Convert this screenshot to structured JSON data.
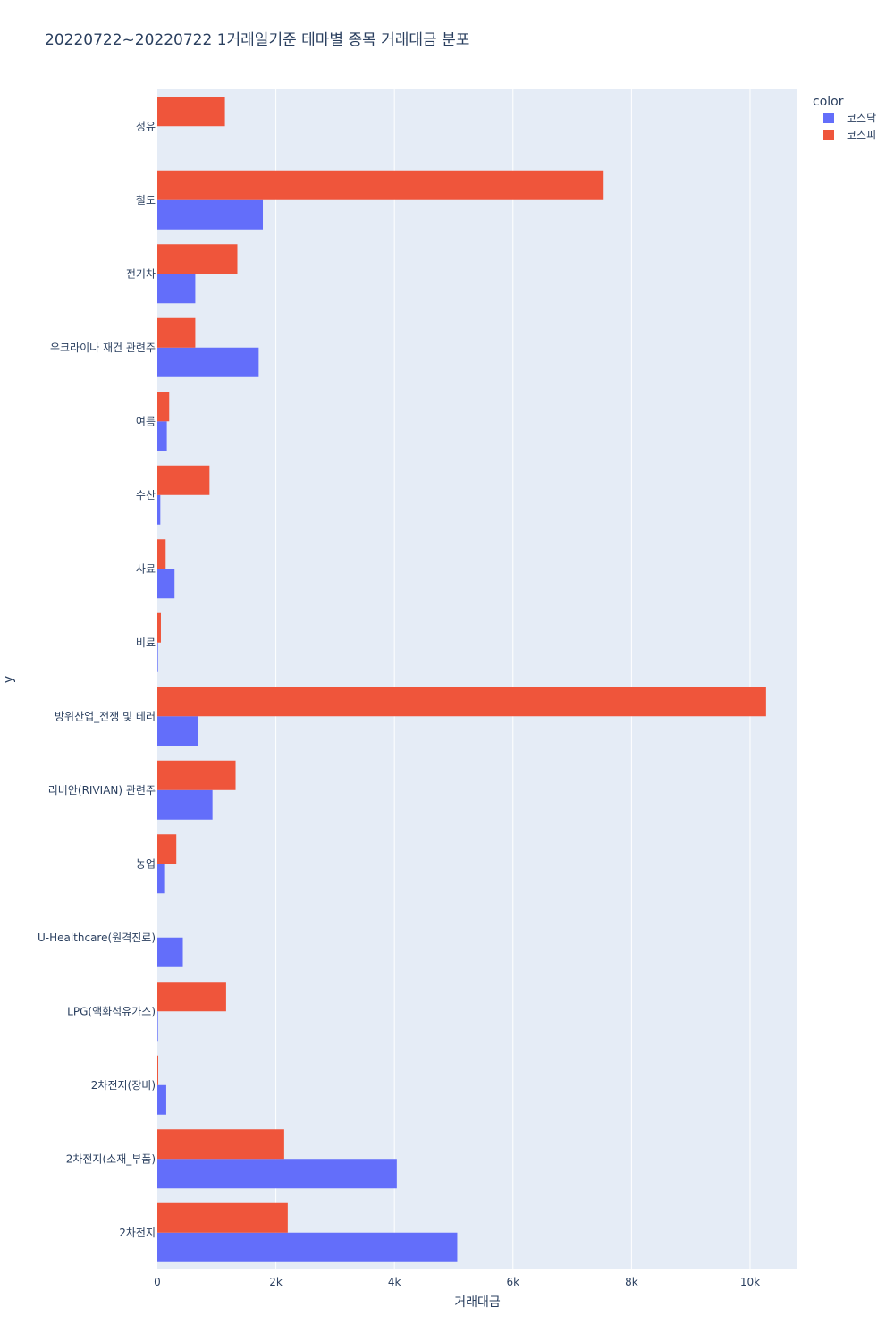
{
  "chart_data": {
    "type": "bar",
    "orientation": "horizontal",
    "barmode": "group",
    "title": "20220722~20220722 1거래일기준 테마별 종목 거래대금 분포",
    "xlabel": "거래대금",
    "ylabel": "y",
    "xlim": [
      0,
      10800
    ],
    "x_ticks": [
      0,
      2000,
      4000,
      6000,
      8000,
      10000
    ],
    "x_tick_labels": [
      "0",
      "2k",
      "4k",
      "6k",
      "8k",
      "10k"
    ],
    "grid": true,
    "legend_title": "color",
    "legend_position": "top-right",
    "categories": [
      "2차전지",
      "2차전지(소재_부품)",
      "2차전지(장비)",
      "LPG(액화석유가스)",
      "U-Healthcare(원격진료)",
      "농업",
      "리비안(RIVIAN) 관련주",
      "방위산업_전쟁 및 테러",
      "비료",
      "사료",
      "수산",
      "여름",
      "우크라이나 재건 관련주",
      "전기차",
      "철도",
      "정유"
    ],
    "series": [
      {
        "name": "코스닥",
        "color": "#636efa",
        "values": [
          5060,
          4040,
          150,
          10,
          430,
          130,
          930,
          690,
          10,
          290,
          50,
          160,
          1710,
          640,
          1780,
          0
        ]
      },
      {
        "name": "코스피",
        "color": "#ef553b",
        "values": [
          2200,
          2140,
          15,
          1160,
          0,
          320,
          1320,
          10270,
          60,
          140,
          880,
          200,
          640,
          1350,
          7530,
          1140
        ]
      }
    ]
  }
}
